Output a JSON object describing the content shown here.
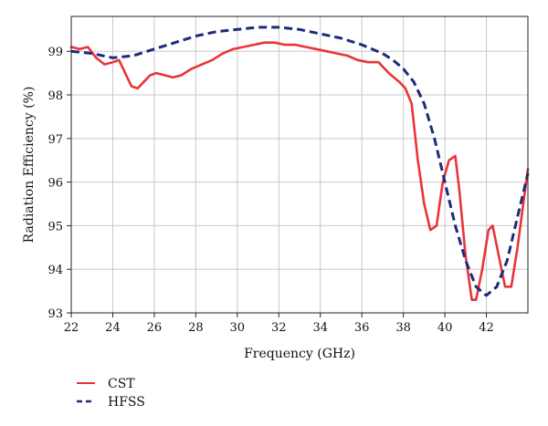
{
  "chart_data": {
    "type": "line",
    "title": "",
    "xlabel": "Frequency (GHz)",
    "ylabel": "Radiation Efficiency (%)",
    "xlim": [
      22,
      44
    ],
    "ylim": [
      93,
      99.8
    ],
    "xticks": [
      22,
      24,
      26,
      28,
      30,
      32,
      34,
      36,
      38,
      40,
      42
    ],
    "yticks": [
      93,
      94,
      95,
      96,
      97,
      98,
      99
    ],
    "grid": true,
    "legend_position": "bottom-left",
    "series": [
      {
        "name": "CST",
        "color": "#e8353a",
        "dash": "solid",
        "x": [
          22.0,
          22.4,
          22.8,
          23.2,
          23.6,
          24.0,
          24.3,
          24.6,
          24.9,
          25.2,
          25.5,
          25.8,
          26.1,
          26.5,
          26.9,
          27.3,
          27.8,
          28.3,
          28.8,
          29.3,
          29.8,
          30.3,
          30.8,
          31.3,
          31.8,
          32.3,
          32.8,
          33.3,
          33.8,
          34.3,
          34.8,
          35.3,
          35.8,
          36.3,
          36.8,
          37.3,
          37.8,
          38.1,
          38.4,
          38.7,
          39.0,
          39.3,
          39.6,
          39.9,
          40.2,
          40.5,
          40.7,
          41.0,
          41.3,
          41.5,
          41.8,
          42.1,
          42.3,
          42.6,
          42.9,
          43.2,
          43.5,
          44.0
        ],
        "y": [
          99.1,
          99.05,
          99.1,
          98.85,
          98.7,
          98.75,
          98.8,
          98.5,
          98.2,
          98.15,
          98.3,
          98.45,
          98.5,
          98.45,
          98.4,
          98.45,
          98.6,
          98.7,
          98.8,
          98.95,
          99.05,
          99.1,
          99.15,
          99.2,
          99.2,
          99.15,
          99.15,
          99.1,
          99.05,
          99.0,
          98.95,
          98.9,
          98.8,
          98.75,
          98.75,
          98.5,
          98.3,
          98.15,
          97.8,
          96.5,
          95.5,
          94.9,
          95.0,
          96.0,
          96.5,
          96.6,
          95.8,
          94.3,
          93.3,
          93.3,
          94.0,
          94.9,
          95.0,
          94.3,
          93.6,
          93.6,
          94.5,
          96.3
        ]
      },
      {
        "name": "HFSS",
        "color": "#1f2a7a",
        "dash": "dashed",
        "x": [
          22.0,
          23.0,
          24.0,
          25.0,
          26.0,
          27.0,
          28.0,
          29.0,
          30.0,
          31.0,
          31.5,
          32.0,
          33.0,
          34.0,
          35.0,
          36.0,
          37.0,
          37.5,
          38.0,
          38.5,
          39.0,
          39.5,
          40.0,
          40.5,
          41.0,
          41.5,
          42.0,
          42.5,
          43.0,
          43.5,
          44.0
        ],
        "y": [
          99.0,
          98.95,
          98.85,
          98.9,
          99.05,
          99.2,
          99.35,
          99.45,
          99.5,
          99.55,
          99.55,
          99.55,
          99.5,
          99.4,
          99.3,
          99.15,
          98.95,
          98.8,
          98.6,
          98.3,
          97.8,
          97.0,
          96.0,
          95.0,
          94.2,
          93.6,
          93.4,
          93.6,
          94.2,
          95.2,
          96.2
        ]
      }
    ]
  }
}
